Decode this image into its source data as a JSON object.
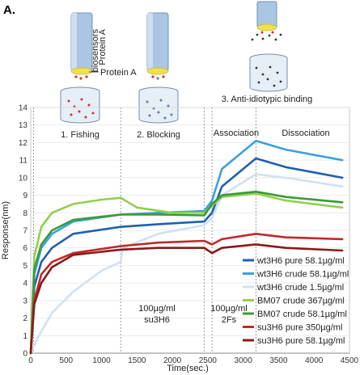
{
  "figure": {
    "panel_label": "A.",
    "steps": [
      {
        "label": "1. Fishing"
      },
      {
        "label": "2. Blocking"
      },
      {
        "label": "3. Anti-idiotypic binding"
      }
    ],
    "illustration_labels": {
      "biosensor_line1": "Protein A",
      "biosensor_line2": "biosensors",
      "protein_a": "Protein A"
    },
    "phase_labels": {
      "association": "Association",
      "dissociation": "Dissociation"
    },
    "annotations": [
      {
        "line1": "100µg/ml",
        "line2": "su3H6"
      },
      {
        "line1": "100µg/ml",
        "line2": "2Fs"
      }
    ]
  },
  "colors": {
    "cylinder": "#aac6e2",
    "cylinder_dark": "#6d93bb",
    "tip": "#f0e050",
    "red_dot": "#d23030",
    "blue_dot": "#5a7eb0",
    "dark_dot": "#333333"
  },
  "chart_data": {
    "type": "line",
    "title": "",
    "xlabel": "Time(sec.)",
    "ylabel": "Response(nm)",
    "xlim": [
      0,
      4500
    ],
    "ylim": [
      0,
      14
    ],
    "xticks": [
      0,
      500,
      1000,
      1500,
      2000,
      2500,
      3000,
      3500,
      4000,
      4500
    ],
    "yticks": [
      0,
      1,
      2,
      3,
      4,
      5,
      6,
      7,
      8,
      9,
      10,
      11,
      12,
      13,
      14
    ],
    "phase_boundaries_x": [
      40,
      1270,
      2450,
      2560,
      3180
    ],
    "legend_position": "lower-right",
    "series": [
      {
        "name": "wt3H6 pure 58.1µg/ml",
        "color": "#1f5fb0",
        "x": [
          0,
          50,
          150,
          300,
          600,
          1270,
          1800,
          2450,
          2560,
          2700,
          3180,
          3600,
          4400
        ],
        "y": [
          0,
          3.8,
          5.2,
          6.0,
          6.8,
          7.2,
          7.35,
          7.5,
          8.0,
          9.5,
          11.1,
          10.6,
          10.0
        ]
      },
      {
        "name": "wt3H6 crude 58.1µg/ml",
        "color": "#3aa0e0",
        "x": [
          0,
          50,
          150,
          300,
          600,
          1270,
          1800,
          2450,
          2560,
          2700,
          3180,
          3600,
          4400
        ],
        "y": [
          0,
          4.5,
          6.0,
          6.8,
          7.5,
          7.9,
          8.0,
          8.1,
          8.7,
          10.5,
          12.1,
          11.6,
          11.0
        ]
      },
      {
        "name": "wt3H6 crude 1.5µg/ml",
        "color": "#cfe2f1",
        "x": [
          0,
          100,
          300,
          600,
          1000,
          1270,
          1300,
          1800,
          2450,
          2560,
          2700,
          3180,
          3600,
          4400
        ],
        "y": [
          0,
          0.9,
          2.3,
          3.5,
          4.7,
          5.2,
          6.0,
          6.8,
          7.3,
          7.7,
          9.0,
          10.2,
          10.0,
          9.5
        ]
      },
      {
        "name": "BM07 crude 367µg/ml",
        "color": "#8fd050",
        "x": [
          0,
          50,
          150,
          300,
          600,
          1000,
          1270,
          1500,
          2000,
          2450,
          2560,
          2700,
          3180,
          3600,
          4400
        ],
        "y": [
          0,
          5.5,
          7.2,
          8.0,
          8.5,
          8.75,
          8.85,
          8.3,
          8.0,
          8.0,
          8.4,
          8.9,
          9.1,
          8.7,
          8.3
        ]
      },
      {
        "name": "BM07 crude 58.1µg/ml",
        "color": "#3d9a35",
        "x": [
          0,
          50,
          150,
          300,
          600,
          1270,
          1800,
          2450,
          2560,
          2700,
          3180,
          3600,
          4400
        ],
        "y": [
          0,
          4.8,
          6.2,
          7.0,
          7.6,
          7.9,
          7.9,
          7.85,
          8.5,
          9.0,
          9.2,
          8.9,
          8.6
        ]
      },
      {
        "name": "su3H6 pure 350µg/ml",
        "color": "#c02828",
        "x": [
          0,
          50,
          150,
          300,
          600,
          1270,
          1800,
          2450,
          2560,
          2700,
          3180,
          3600,
          4400
        ],
        "y": [
          0,
          3.0,
          4.5,
          5.2,
          5.7,
          6.1,
          6.3,
          6.4,
          6.2,
          6.5,
          6.8,
          6.6,
          6.5
        ]
      },
      {
        "name": "su3H6 pure 58.1µg/ml",
        "color": "#8a1a1a",
        "x": [
          0,
          50,
          150,
          300,
          600,
          1270,
          1800,
          2450,
          2560,
          2700,
          3180,
          3600,
          4400
        ],
        "y": [
          0,
          2.8,
          4.0,
          4.9,
          5.6,
          5.9,
          6.0,
          6.0,
          5.7,
          6.0,
          6.2,
          6.0,
          5.85
        ]
      }
    ]
  }
}
